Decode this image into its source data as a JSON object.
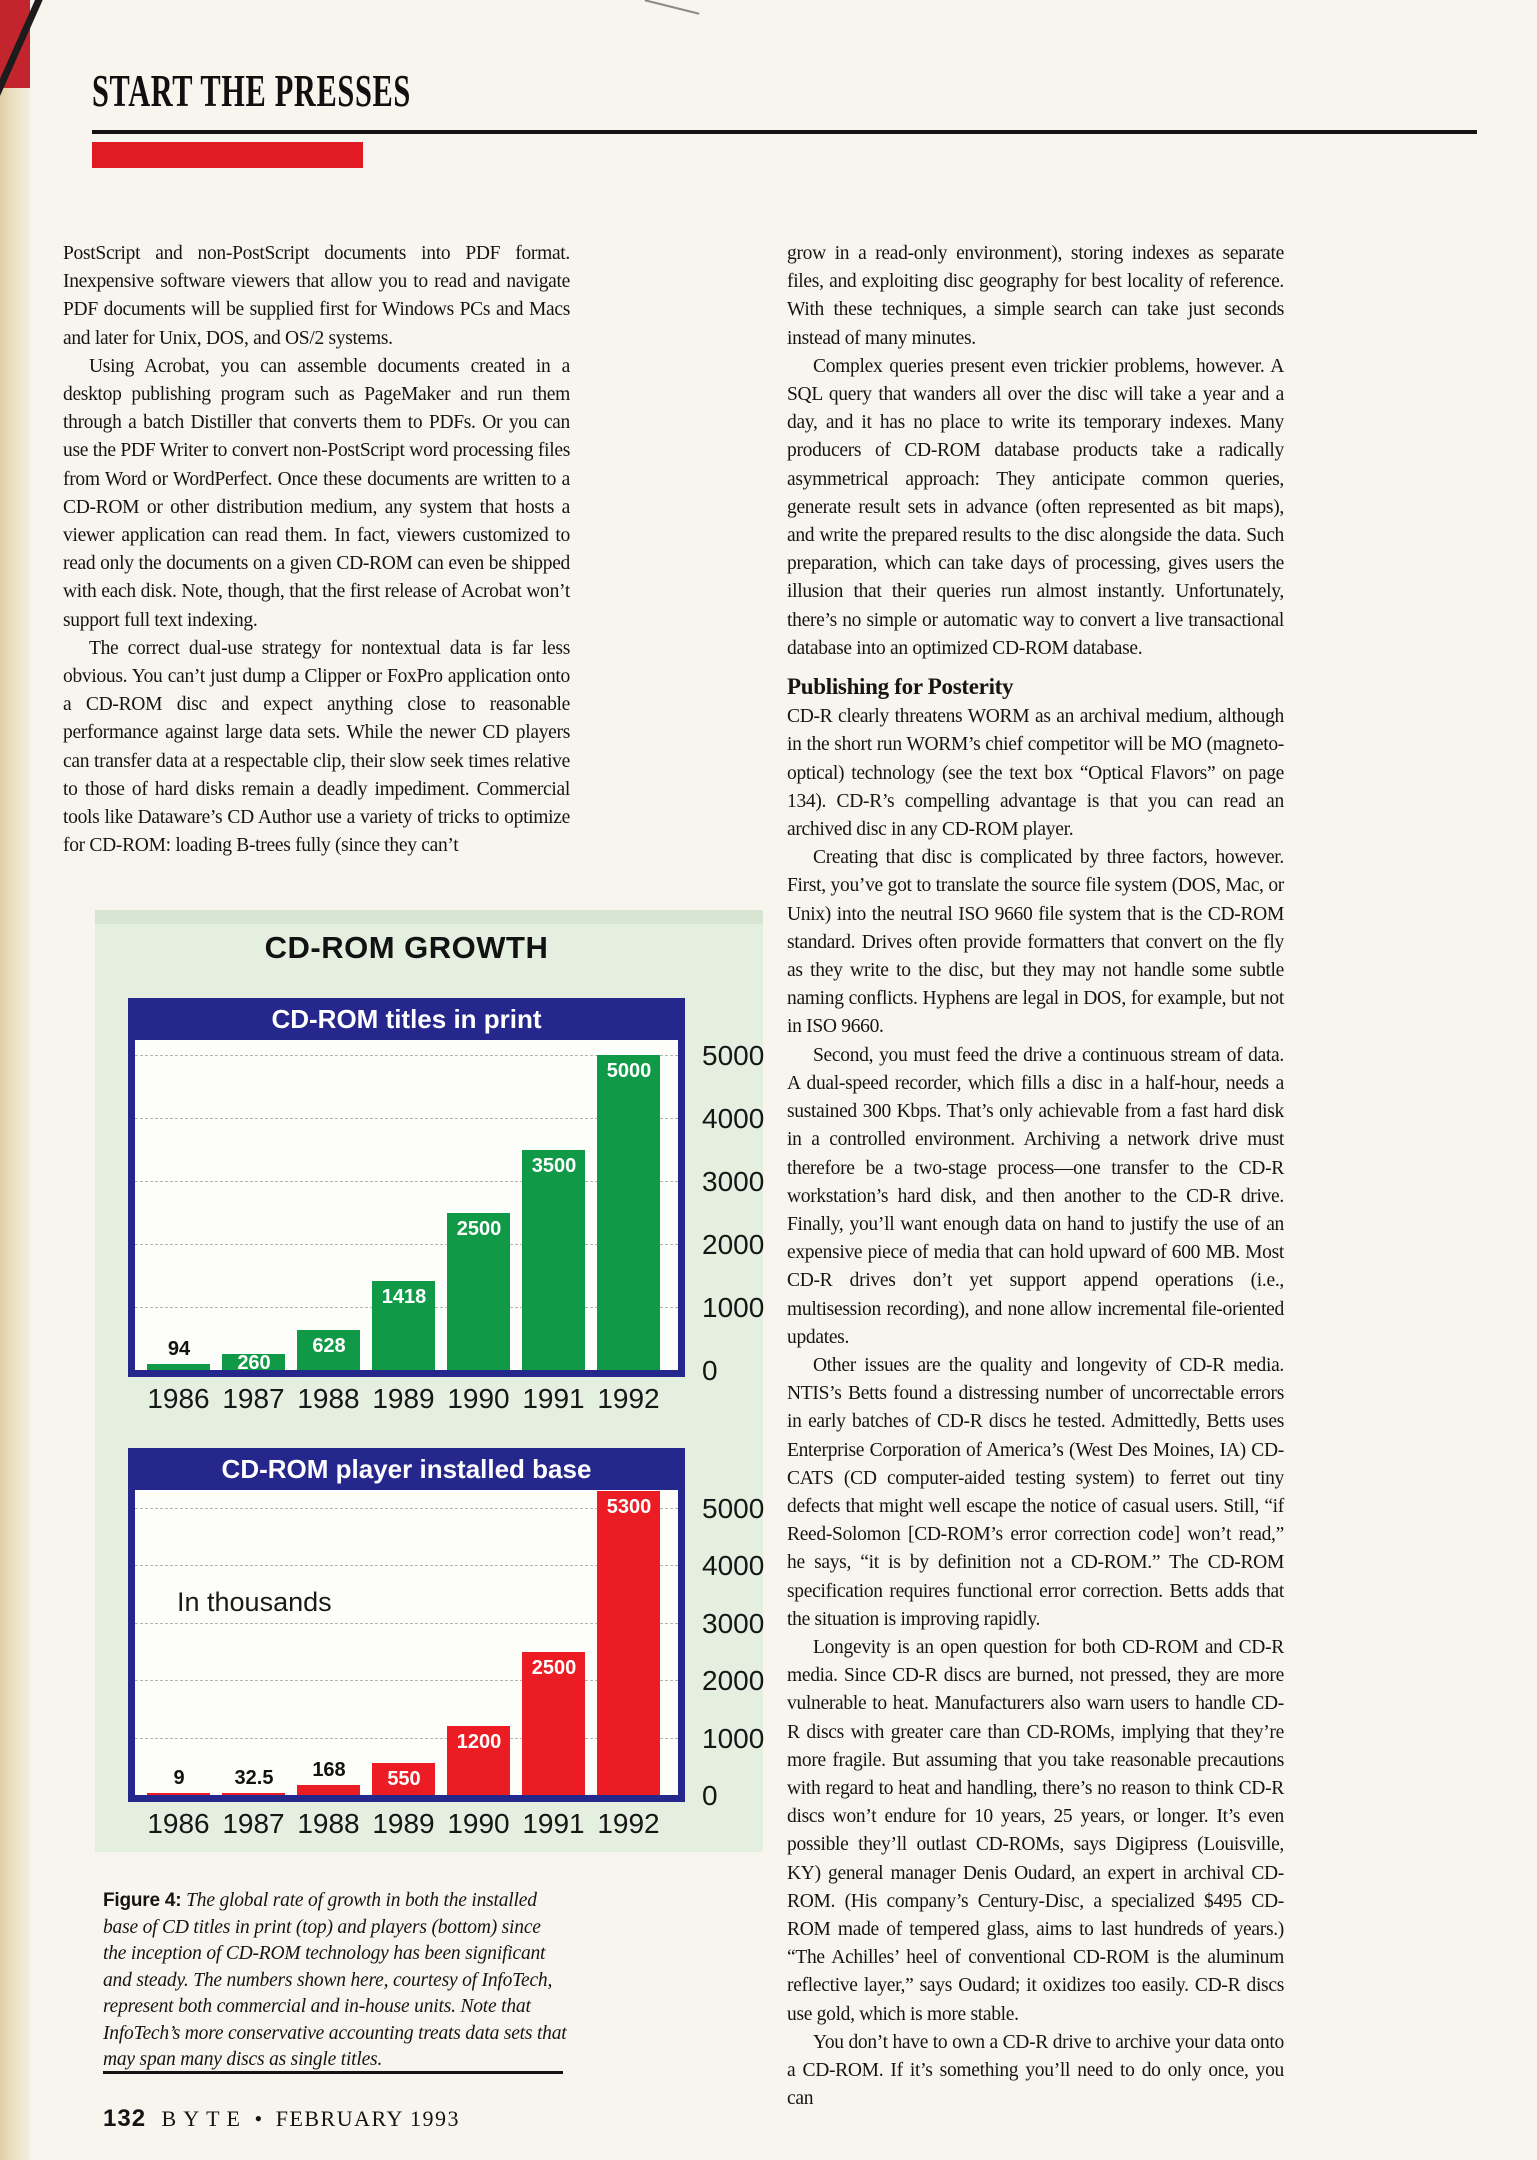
{
  "page": {
    "masthead": "START THE PRESSES",
    "footer": {
      "page_number": "132",
      "magazine": "BYTE",
      "bullet": "•",
      "issue": "FEBRUARY 1993"
    },
    "colors": {
      "accent_red": "#e01b23",
      "navy": "#26278c",
      "bar_green": "#109a47",
      "bar_red": "#ec1c24",
      "figure_bg": "#e5efe0",
      "page_bg": "#f8f5ee"
    }
  },
  "article": {
    "left_column": {
      "paragraphs": [
        "PostScript and non-PostScript documents into PDF format. Inexpensive software viewers that allow you to read and navigate PDF documents will be supplied first for Windows PCs and Macs and later for Unix, DOS, and OS/2 systems.",
        "Using Acrobat, you can assemble documents created in a desktop publishing program such as PageMaker and run them through a batch Distiller that converts them to PDFs. Or you can use the PDF Writer to convert non-PostScript word processing files from Word or WordPerfect. Once these documents are written to a CD-ROM or other distribution medium, any system that hosts a viewer application can read them. In fact, viewers customized to read only the documents on a given CD-ROM can even be shipped with each disk. Note, though, that the first release of Acrobat won’t support full text indexing.",
        "The correct dual-use strategy for nontextual data is far less obvious. You can’t just dump a Clipper or FoxPro application onto a CD-ROM disc and expect anything close to reasonable performance against large data sets. While the newer CD players can transfer data at a respectable clip, their slow seek times relative to those of hard disks remain a deadly impediment. Commercial tools like Dataware’s CD Author use a variety of tricks to optimize for CD-ROM: loading B-trees fully (since they can’t"
      ]
    },
    "right_column": {
      "paragraphs_top": [
        "grow in a read-only environment), storing indexes as separate files, and exploiting disc geography for best locality of reference. With these techniques, a simple search can take just seconds instead of many minutes.",
        "Complex queries present even trickier problems, however. A SQL query that wanders all over the disc will take a year and a day, and it has no place to write its temporary indexes. Many producers of CD-ROM database products take a radically asymmetrical approach: They anticipate common queries, generate result sets in advance (often represented as bit maps), and write the prepared results to the disc alongside the data. Such preparation, which can take days of processing, gives users the illusion that their queries run almost instantly. Unfortunately, there’s no simple or automatic way to convert a live transactional database into an optimized CD-ROM database."
      ],
      "subhead": "Publishing for Posterity",
      "paragraphs_bottom": [
        "CD-R clearly threatens WORM as an archival medium, although in the short run WORM’s chief competitor will be MO (magneto-optical) technology (see the text box “Optical Flavors” on page 134). CD-R’s compelling advantage is that you can read an archived disc in any CD-ROM player.",
        "Creating that disc is complicated by three factors, however. First, you’ve got to translate the source file system (DOS, Mac, or Unix) into the neutral ISO 9660 file system that is the CD-ROM standard. Drives often provide formatters that convert on the fly as they write to the disc, but they may not handle some subtle naming conflicts. Hyphens are legal in DOS, for example, but not in ISO 9660.",
        "Second, you must feed the drive a continuous stream of data. A dual-speed recorder, which fills a disc in a half-hour, needs a sustained 300 Kbps. That’s only achievable from a fast hard disk in a controlled environment. Archiving a network drive must therefore be a two-stage process—one transfer to the CD-R workstation’s hard disk, and then another to the CD-R drive. Finally, you’ll want enough data on hand to justify the use of an expensive piece of media that can hold upward of 600 MB. Most CD-R drives don’t yet support append operations (i.e., multisession recording), and none allow incremental file-oriented updates.",
        "Other issues are the quality and longevity of CD-R media. NTIS’s Betts found a distressing number of uncorrectable errors in early batches of CD-R discs he tested. Admittedly, Betts uses Enterprise Corporation of America’s (West Des Moines, IA) CD-CATS (CD computer-aided testing system) to ferret out tiny defects that might well escape the notice of casual users. Still, “if Reed-Solomon [CD-ROM’s error correction code] won’t read,” he says, “it is by definition not a CD-ROM.” The CD-ROM specification requires functional error correction. Betts adds that the situation is improving rapidly.",
        "Longevity is an open question for both CD-ROM and CD-R media. Since CD-R discs are burned, not pressed, they are more vulnerable to heat. Manufacturers also warn users to handle CD-R discs with greater care than CD-ROMs, implying that they’re more fragile. But assuming that you take reasonable precautions with regard to heat and handling, there’s no reason to think CD-R discs won’t endure for 10 years, 25 years, or longer. It’s even possible they’ll outlast CD-ROMs, says Digipress (Louisville, KY) general manager Denis Oudard, an expert in archival CD-ROM. (His company’s Century-Disc, a specialized $495 CD-ROM made of tempered glass, aims to last hundreds of years.) “The Achilles’ heel of conventional CD-ROM is the aluminum reflective layer,” says Oudard; it oxidizes too easily. CD-R discs use gold, which is more stable.",
        "You don’t have to own a CD-R drive to archive your data onto a CD-ROM. If it’s something you’ll need to do only once, you can"
      ]
    }
  },
  "figure": {
    "title": "CD-ROM GROWTH",
    "caption": {
      "label": "Figure 4:",
      "text": "The global rate of growth in both the installed base of CD titles in print (top) and players (bottom) since the inception of CD-ROM technology has been significant and steady. The numbers shown here, courtesy of InfoTech, represent both commercial and in-house units. Note that InfoTech’s more conservative accounting treats data sets that may span many discs as single titles."
    }
  },
  "chart_data": [
    {
      "type": "bar",
      "title": "CD-ROM titles in print",
      "categories": [
        "1986",
        "1987",
        "1988",
        "1989",
        "1990",
        "1991",
        "1992"
      ],
      "values": [
        94,
        260,
        628,
        1418,
        2500,
        3500,
        5000
      ],
      "value_labels": [
        "94",
        "260",
        "628",
        "1418",
        "2500",
        "3500",
        "5000"
      ],
      "bar_color": "#109a47",
      "ylim": [
        0,
        5000
      ],
      "yticks": [
        0,
        1000,
        2000,
        3000,
        4000,
        5000
      ],
      "axis_side": "right",
      "grid": true
    },
    {
      "type": "bar",
      "title": "CD-ROM player installed base",
      "note": "In thousands",
      "categories": [
        "1986",
        "1987",
        "1988",
        "1989",
        "1990",
        "1991",
        "1992"
      ],
      "values": [
        9,
        32.5,
        168,
        550,
        1200,
        2500,
        5300
      ],
      "value_labels": [
        "9",
        "32.5",
        "168",
        "550",
        "1200",
        "2500",
        "5300"
      ],
      "bar_color": "#ec1c24",
      "ylim": [
        0,
        5000
      ],
      "yticks": [
        0,
        1000,
        2000,
        3000,
        4000,
        5000
      ],
      "axis_side": "right",
      "grid": true
    }
  ]
}
